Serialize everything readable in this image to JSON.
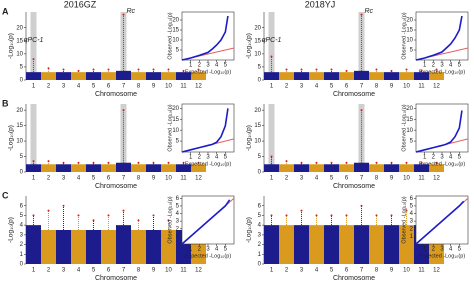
{
  "figure": {
    "columns": [
      "2016GZ",
      "2018YJ"
    ],
    "rows": [
      "A",
      "B",
      "C"
    ]
  },
  "chart_data": [
    {
      "type": "manhattan",
      "x_label": "Chromosome",
      "y_label": "-Log₁₀(p)",
      "categories": [
        "1",
        "2",
        "3",
        "4",
        "5",
        "6",
        "7",
        "8",
        "9",
        "10",
        "11",
        "12"
      ],
      "bulk": [
        3,
        3,
        3,
        3,
        3,
        3,
        3.5,
        3,
        3,
        3,
        3,
        3
      ],
      "values": [
        8,
        4.5,
        4,
        3.5,
        4,
        4,
        25,
        4,
        4,
        4,
        3.5,
        4
      ],
      "ylim": [
        0,
        26
      ],
      "yticks": [
        0,
        5,
        10,
        15,
        20
      ],
      "colors": [
        "#1c1c8c",
        "#d99a1e"
      ],
      "peak_color": "#d62020",
      "highlight": [
        0,
        6
      ],
      "annotations": [
        {
          "text": "qPC-1",
          "at": 0
        },
        {
          "text": "Rc",
          "at": 6
        }
      ]
    },
    {
      "type": "qq",
      "x_label": "Expected -Log₁₀(p)",
      "y_label": "Observed -Log₁₀(p)",
      "x": [
        0,
        1,
        2,
        3,
        3.5,
        4,
        4.5,
        5,
        5.3
      ],
      "values": [
        0,
        1,
        2.3,
        3.8,
        5.5,
        7.5,
        10,
        14,
        22
      ],
      "xlim": [
        0,
        6
      ],
      "ylim": [
        0,
        24
      ],
      "xticks": [
        1,
        2,
        3,
        4,
        5
      ],
      "yticks": [
        5,
        10,
        15,
        20
      ],
      "color": "#1c1cc8",
      "reference_color": "#e06060"
    },
    {
      "type": "manhattan",
      "x_label": "Chromosome",
      "y_label": "-Log₁₀(p)",
      "categories": [
        "1",
        "2",
        "3",
        "4",
        "5",
        "6",
        "7",
        "8",
        "9",
        "10",
        "11",
        "12"
      ],
      "bulk": [
        3,
        3,
        3,
        3,
        3,
        3,
        3.5,
        3,
        3,
        3,
        3,
        3
      ],
      "values": [
        9,
        4,
        4,
        4,
        4,
        3.5,
        25,
        4,
        3.5,
        4,
        3.5,
        4
      ],
      "ylim": [
        0,
        26
      ],
      "yticks": [
        0,
        5,
        10,
        15,
        20
      ],
      "colors": [
        "#1c1c8c",
        "#d99a1e"
      ],
      "peak_color": "#d62020",
      "highlight": [
        0,
        6
      ],
      "annotations": [
        {
          "text": "qPC-1",
          "at": 0
        },
        {
          "text": "Rc",
          "at": 6
        }
      ]
    },
    {
      "type": "qq",
      "x_label": "Expected -Log₁₀(p)",
      "y_label": "Observed -Log₁₀(p)",
      "x": [
        0,
        1,
        2,
        3,
        3.5,
        4,
        4.5,
        5,
        5.3
      ],
      "values": [
        0,
        1,
        2.4,
        4,
        6,
        8,
        11,
        15,
        22
      ],
      "xlim": [
        0,
        6
      ],
      "ylim": [
        0,
        24
      ],
      "xticks": [
        1,
        2,
        3,
        4,
        5
      ],
      "yticks": [
        5,
        10,
        15,
        20
      ],
      "color": "#1c1cc8",
      "reference_color": "#e06060"
    },
    {
      "type": "manhattan",
      "x_label": "Chromosome",
      "y_label": "-Log₁₀(p)",
      "categories": [
        "1",
        "2",
        "3",
        "4",
        "5",
        "6",
        "7",
        "8",
        "9",
        "10",
        "11",
        "12"
      ],
      "bulk": [
        2.5,
        2.5,
        2.5,
        2.5,
        2.5,
        2.5,
        3,
        2.5,
        2.5,
        2.5,
        2.5,
        2.5
      ],
      "values": [
        3.5,
        3.5,
        3,
        3,
        3,
        3,
        20,
        3,
        3,
        3,
        3,
        3
      ],
      "ylim": [
        0,
        22
      ],
      "yticks": [
        0,
        5,
        10,
        15,
        20
      ],
      "colors": [
        "#1c1c8c",
        "#d99a1e"
      ],
      "peak_color": "#d62020",
      "highlight": [
        0,
        6
      ],
      "annotations": []
    },
    {
      "type": "qq",
      "x_label": "Expected -Log₁₀(p)",
      "y_label": "Observed -Log₁₀(p)",
      "x": [
        0,
        1,
        2,
        3,
        3.5,
        4,
        4.5,
        5,
        5.3
      ],
      "values": [
        0,
        1,
        2,
        3,
        3.5,
        4.5,
        7,
        12,
        20
      ],
      "xlim": [
        0,
        6
      ],
      "ylim": [
        0,
        22
      ],
      "xticks": [
        1,
        2,
        3,
        4,
        5
      ],
      "yticks": [
        5,
        10,
        15,
        20
      ],
      "color": "#1c1cc8",
      "reference_color": "#e06060"
    },
    {
      "type": "manhattan",
      "x_label": "Chromosome",
      "y_label": "-Log₁₀(p)",
      "categories": [
        "1",
        "2",
        "3",
        "4",
        "5",
        "6",
        "7",
        "8",
        "9",
        "10",
        "11",
        "12"
      ],
      "bulk": [
        2.5,
        2.5,
        2.5,
        2.5,
        2.5,
        2.5,
        3,
        2.5,
        2.5,
        2.5,
        2.5,
        2.5
      ],
      "values": [
        5,
        3.5,
        3,
        3,
        3,
        3,
        20,
        3,
        3,
        3,
        3,
        3
      ],
      "ylim": [
        0,
        22
      ],
      "yticks": [
        0,
        5,
        10,
        15,
        20
      ],
      "colors": [
        "#1c1c8c",
        "#d99a1e"
      ],
      "peak_color": "#d62020",
      "highlight": [
        0,
        6
      ],
      "annotations": []
    },
    {
      "type": "qq",
      "x_label": "Expected -Log₁₀(p)",
      "y_label": "Observed -Log₁₀(p)",
      "x": [
        0,
        1,
        2,
        3,
        3.5,
        4,
        4.5,
        5,
        5.3
      ],
      "values": [
        0,
        1,
        2,
        3,
        3.6,
        4.6,
        7,
        11,
        19
      ],
      "xlim": [
        0,
        6
      ],
      "ylim": [
        0,
        22
      ],
      "xticks": [
        1,
        2,
        3,
        4,
        5
      ],
      "yticks": [
        5,
        10,
        15,
        20
      ],
      "color": "#1c1cc8",
      "reference_color": "#e06060"
    },
    {
      "type": "manhattan",
      "x_label": "Chromosome",
      "y_label": "-Log₁₀(p)",
      "categories": [
        "1",
        "2",
        "3",
        "4",
        "5",
        "6",
        "7",
        "8",
        "9",
        "10",
        "11",
        "12"
      ],
      "bulk": [
        4,
        3.5,
        3.5,
        3.5,
        3.5,
        3.5,
        4,
        3.5,
        3.5,
        3.5,
        3.5,
        3.5
      ],
      "values": [
        5,
        5.5,
        6,
        5,
        4.5,
        5,
        5.5,
        4.5,
        5,
        4.5,
        5.5,
        5
      ],
      "ylim": [
        0,
        7
      ],
      "yticks": [
        0,
        1,
        2,
        3,
        4,
        5,
        6
      ],
      "colors": [
        "#1c1c8c",
        "#d99a1e"
      ],
      "peak_color": "#d62020",
      "highlight": [],
      "annotations": []
    },
    {
      "type": "qq",
      "x_label": "Expected -Log₁₀(p)",
      "y_label": "Observed -Log₁₀(p)",
      "x": [
        0,
        1,
        2,
        3,
        4,
        5,
        5.5
      ],
      "values": [
        0,
        1,
        2,
        3,
        4,
        5,
        5.8
      ],
      "xlim": [
        0,
        6
      ],
      "ylim": [
        0,
        6.3
      ],
      "xticks": [
        1,
        2,
        3,
        4,
        5
      ],
      "yticks": [
        1,
        2,
        3,
        4,
        5,
        6
      ],
      "color": "#1c1cc8",
      "reference_color": "#e06060"
    },
    {
      "type": "manhattan",
      "x_label": "Chromosome",
      "y_label": "-Log₁₀(p)",
      "categories": [
        "1",
        "2",
        "3",
        "4",
        "5",
        "6",
        "7",
        "8",
        "9",
        "10",
        "11",
        "12"
      ],
      "bulk": [
        4,
        4,
        4,
        4,
        4,
        4,
        4,
        4,
        4,
        4,
        4,
        4
      ],
      "values": [
        5,
        5,
        5.5,
        5,
        5,
        5,
        6,
        5,
        5,
        5.5,
        5,
        5
      ],
      "ylim": [
        0,
        7
      ],
      "yticks": [
        0,
        1,
        2,
        3,
        4,
        5,
        6
      ],
      "colors": [
        "#1c1c8c",
        "#d99a1e"
      ],
      "peak_color": "#d62020",
      "highlight": [],
      "annotations": []
    },
    {
      "type": "qq",
      "x_label": "Expected -Log₁₀(p)",
      "y_label": "Observed -Log₁₀(p)",
      "x": [
        0,
        1,
        2,
        3,
        4,
        5,
        5.5
      ],
      "values": [
        0,
        1,
        2,
        3,
        4,
        5,
        5.6
      ],
      "xlim": [
        0,
        6
      ],
      "ylim": [
        0,
        6.3
      ],
      "xticks": [
        1,
        2,
        3,
        4,
        5
      ],
      "yticks": [
        1,
        2,
        3,
        4,
        5,
        6
      ],
      "color": "#1c1cc8",
      "reference_color": "#e06060"
    }
  ]
}
